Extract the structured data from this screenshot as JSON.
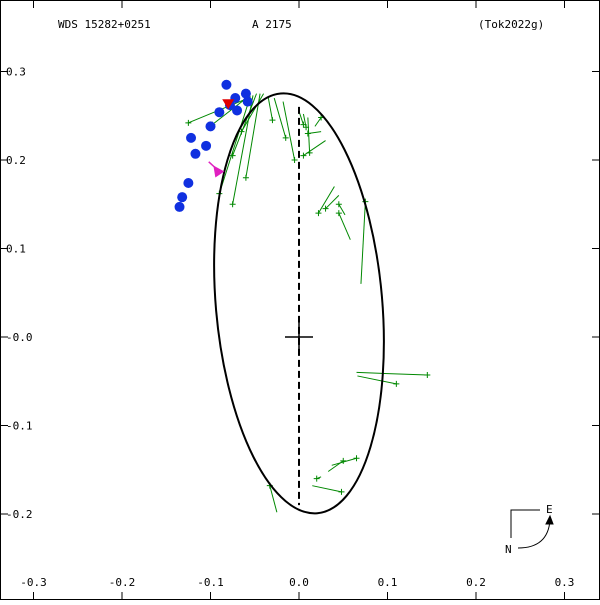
{
  "header": {
    "left": "WDS 15282+0251",
    "center": "A  2175",
    "right": "(Tok2022g)"
  },
  "compass": {
    "east": "E",
    "north": "N"
  },
  "colors": {
    "orbit": "#000000",
    "residual": "#008800",
    "obs_point": "#1030e0",
    "marker_red": "#e00000",
    "arrow": "#e020c0"
  },
  "chart_data": {
    "type": "scatter",
    "title": "",
    "xlabel": "",
    "ylabel": "",
    "xlim": [
      -0.3,
      0.3
    ],
    "ylim": [
      -0.3,
      0.3
    ],
    "y_inverted": true,
    "grid": false,
    "x_ticks": [
      {
        "v": -0.3,
        "label": "-0.3"
      },
      {
        "v": -0.2,
        "label": "-0.2"
      },
      {
        "v": -0.1,
        "label": "-0.1"
      },
      {
        "v": 0.0,
        "label": "0.0"
      },
      {
        "v": 0.1,
        "label": "0.1"
      },
      {
        "v": 0.2,
        "label": "0.2"
      },
      {
        "v": 0.3,
        "label": "0.3"
      }
    ],
    "y_ticks": [
      {
        "v": -0.3,
        "label": "-0.3"
      },
      {
        "v": -0.2,
        "label": "-0.2"
      },
      {
        "v": -0.1,
        "label": "-0.1"
      },
      {
        "v": 0.0,
        "label": "-0.0"
      },
      {
        "v": 0.1,
        "label": "0.1"
      },
      {
        "v": 0.2,
        "label": "0.2"
      },
      {
        "v": 0.3,
        "label": "0.3"
      }
    ],
    "orbit_ellipse": {
      "center": [
        -0.0,
        0.038
      ],
      "semi_x": 0.094,
      "semi_y": 0.238,
      "angle_deg": -5
    },
    "line_of_nodes": {
      "from": [
        0.0,
        0.0
      ],
      "to_top": [
        0.0,
        0.26
      ],
      "to_bottom": [
        0.0,
        -0.19
      ]
    },
    "primary": [
      0.0,
      0.0
    ],
    "blue_points": [
      [
        -0.082,
        0.285
      ],
      [
        -0.06,
        0.275
      ],
      [
        -0.072,
        0.27
      ],
      [
        -0.078,
        0.262
      ],
      [
        -0.058,
        0.266
      ],
      [
        -0.07,
        0.256
      ],
      [
        -0.09,
        0.254
      ],
      [
        -0.1,
        0.238
      ],
      [
        -0.122,
        0.225
      ],
      [
        -0.105,
        0.216
      ],
      [
        -0.117,
        0.207
      ],
      [
        -0.125,
        0.174
      ],
      [
        -0.132,
        0.158
      ],
      [
        -0.135,
        0.147
      ]
    ],
    "red_marker": [
      -0.08,
      0.263
    ],
    "pink_arrow": {
      "from": [
        -0.102,
        0.198
      ],
      "to": [
        -0.09,
        0.187
      ]
    },
    "green_residuals": [
      {
        "obs": [
          -0.125,
          0.242
        ],
        "fit": [
          -0.062,
          0.268
        ]
      },
      {
        "obs": [
          -0.098,
          0.24
        ],
        "fit": [
          -0.058,
          0.271
        ]
      },
      {
        "obs": [
          -0.09,
          0.162
        ],
        "fit": [
          -0.055,
          0.272
        ]
      },
      {
        "obs": [
          -0.075,
          0.15
        ],
        "fit": [
          -0.052,
          0.273
        ]
      },
      {
        "obs": [
          -0.075,
          0.205
        ],
        "fit": [
          -0.048,
          0.275
        ]
      },
      {
        "obs": [
          -0.06,
          0.18
        ],
        "fit": [
          -0.044,
          0.275
        ]
      },
      {
        "obs": [
          -0.065,
          0.232
        ],
        "fit": [
          -0.04,
          0.275
        ]
      },
      {
        "obs": [
          -0.03,
          0.245
        ],
        "fit": [
          -0.035,
          0.272
        ]
      },
      {
        "obs": [
          -0.015,
          0.225
        ],
        "fit": [
          -0.028,
          0.27
        ]
      },
      {
        "obs": [
          -0.005,
          0.2
        ],
        "fit": [
          -0.018,
          0.266
        ]
      },
      {
        "obs": [
          0.005,
          0.24
        ],
        "fit": [
          0.0,
          0.255
        ]
      },
      {
        "obs": [
          0.008,
          0.237
        ],
        "fit": [
          0.005,
          0.252
        ]
      },
      {
        "obs": [
          0.012,
          0.208
        ],
        "fit": [
          0.01,
          0.248
        ]
      },
      {
        "obs": [
          0.025,
          0.248
        ],
        "fit": [
          0.018,
          0.238
        ]
      },
      {
        "obs": [
          0.01,
          0.23
        ],
        "fit": [
          0.025,
          0.232
        ]
      },
      {
        "obs": [
          0.005,
          0.205
        ],
        "fit": [
          0.03,
          0.222
        ]
      },
      {
        "obs": [
          0.022,
          0.14
        ],
        "fit": [
          0.04,
          0.17
        ]
      },
      {
        "obs": [
          0.03,
          0.145
        ],
        "fit": [
          0.045,
          0.16
        ]
      },
      {
        "obs": [
          0.045,
          0.15
        ],
        "fit": [
          0.052,
          0.138
        ]
      },
      {
        "obs": [
          0.045,
          0.14
        ],
        "fit": [
          0.058,
          0.11
        ]
      },
      {
        "obs": [
          0.075,
          0.153
        ],
        "fit": [
          0.07,
          0.06
        ]
      },
      {
        "obs": [
          0.145,
          -0.043
        ],
        "fit": [
          0.065,
          -0.04
        ]
      },
      {
        "obs": [
          0.11,
          -0.053
        ],
        "fit": [
          0.066,
          -0.044
        ]
      },
      {
        "obs": [
          0.065,
          -0.137
        ],
        "fit": [
          0.037,
          -0.145
        ]
      },
      {
        "obs": [
          0.05,
          -0.14
        ],
        "fit": [
          0.033,
          -0.152
        ]
      },
      {
        "obs": [
          0.02,
          -0.16
        ],
        "fit": [
          0.025,
          -0.158
        ]
      },
      {
        "obs": [
          0.048,
          -0.175
        ],
        "fit": [
          0.015,
          -0.168
        ]
      },
      {
        "obs": [
          -0.033,
          -0.168
        ],
        "fit": [
          -0.025,
          -0.198
        ]
      }
    ]
  }
}
